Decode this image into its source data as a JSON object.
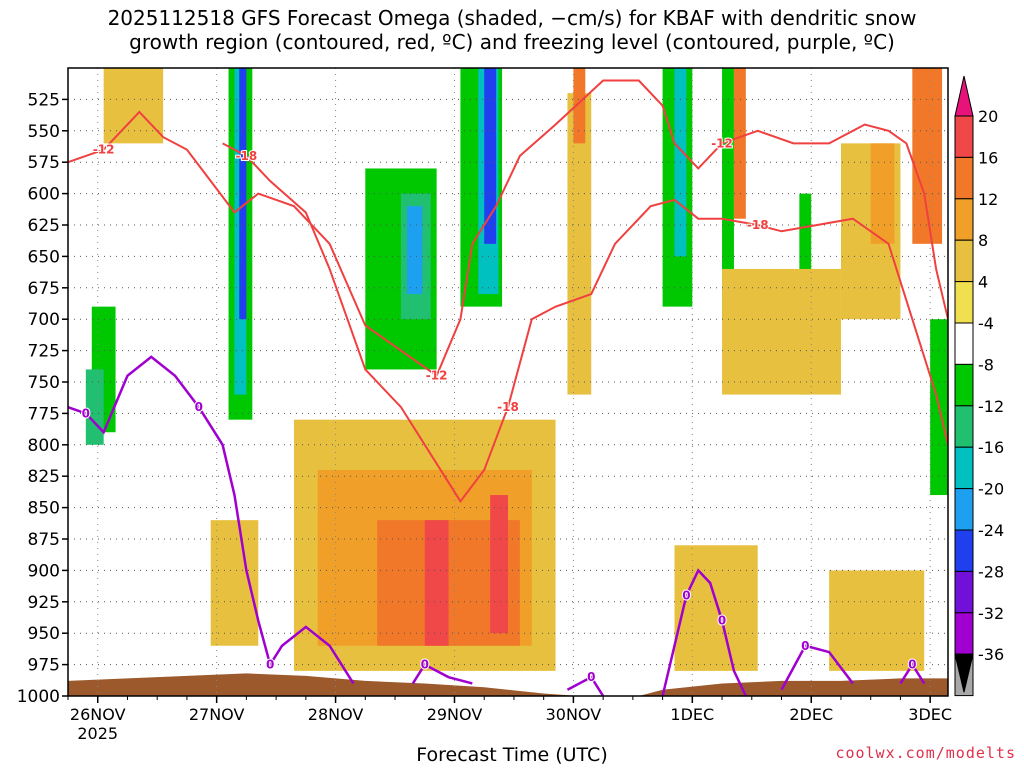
{
  "chart_data": {
    "type": "heatmap",
    "title_line1": "2025112518 GFS Forecast Omega (shaded, −cm/s) for KBAF with dendritic snow",
    "title_line2": "growth region (contoured, red, ºC) and freezing level (contoured, purple, ºC)",
    "xlabel": "Forecast Time (UTC)",
    "credit": "coolwx.com/modelts",
    "y_axis": {
      "unit": "hPa",
      "range": [
        500,
        1000
      ],
      "ticks": [
        525,
        550,
        575,
        600,
        625,
        650,
        675,
        700,
        725,
        750,
        775,
        800,
        825,
        850,
        875,
        900,
        925,
        950,
        975,
        1000
      ]
    },
    "x_axis": {
      "range_days": [
        0,
        7.4
      ],
      "ticks": [
        {
          "label": "26NOV",
          "sub": "2025",
          "day": 0.25
        },
        {
          "label": "27NOV",
          "sub": "",
          "day": 1.25
        },
        {
          "label": "28NOV",
          "sub": "",
          "day": 2.25
        },
        {
          "label": "29NOV",
          "sub": "",
          "day": 3.25
        },
        {
          "label": "30NOV",
          "sub": "",
          "day": 4.25
        },
        {
          "label": "1DEC",
          "sub": "",
          "day": 5.25
        },
        {
          "label": "2DEC",
          "sub": "",
          "day": 6.25
        },
        {
          "label": "3DEC",
          "sub": "",
          "day": 7.25
        }
      ]
    },
    "colorbar": {
      "levels": [
        20,
        16,
        12,
        8,
        4,
        -4,
        -8,
        -12,
        -16,
        -20,
        -24,
        -28,
        -32,
        -36
      ],
      "colors": [
        "#e8137a",
        "#f04848",
        "#f07828",
        "#f0a028",
        "#e8c040",
        "#f0e050",
        "#ffffff",
        "#00c800",
        "#20c070",
        "#00c0c0",
        "#1ea0f0",
        "#2040f0",
        "#7010d8",
        "#a000d0",
        "#a8a8a8",
        "#000000"
      ]
    },
    "omega_cells": [
      {
        "d": [
          0.05,
          0.35
        ],
        "p": [
          500,
          560
        ],
        "v": -8
      },
      {
        "d": [
          0.2,
          0.4
        ],
        "p": [
          690,
          790
        ],
        "v": -12
      },
      {
        "d": [
          0.15,
          0.3
        ],
        "p": [
          740,
          800
        ],
        "v": -16
      },
      {
        "d": [
          0.45,
          0.65
        ],
        "p": [
          500,
          610
        ],
        "v": -8
      },
      {
        "d": [
          0.9,
          1.3
        ],
        "p": [
          500,
          530
        ],
        "v": -8
      },
      {
        "d": [
          1.0,
          1.35
        ],
        "p": [
          690,
          800
        ],
        "v": -8
      },
      {
        "d": [
          1.3,
          1.7
        ],
        "p": [
          500,
          820
        ],
        "v": -8
      },
      {
        "d": [
          1.35,
          1.55
        ],
        "p": [
          500,
          780
        ],
        "v": -12
      },
      {
        "d": [
          1.4,
          1.5
        ],
        "p": [
          500,
          760
        ],
        "v": -20
      },
      {
        "d": [
          1.44,
          1.5
        ],
        "p": [
          500,
          700
        ],
        "v": -28
      },
      {
        "d": [
          1.7,
          2.1
        ],
        "p": [
          500,
          580
        ],
        "v": -8
      },
      {
        "d": [
          2.05,
          2.4
        ],
        "p": [
          500,
          620
        ],
        "v": -8
      },
      {
        "d": [
          2.2,
          3.2
        ],
        "p": [
          540,
          760
        ],
        "v": -8
      },
      {
        "d": [
          2.5,
          3.1
        ],
        "p": [
          580,
          740
        ],
        "v": -12
      },
      {
        "d": [
          2.8,
          3.05
        ],
        "p": [
          600,
          700
        ],
        "v": -16
      },
      {
        "d": [
          2.85,
          2.98
        ],
        "p": [
          610,
          680
        ],
        "v": -24
      },
      {
        "d": [
          3.2,
          3.7
        ],
        "p": [
          500,
          720
        ],
        "v": -8
      },
      {
        "d": [
          3.3,
          3.65
        ],
        "p": [
          500,
          690
        ],
        "v": -12
      },
      {
        "d": [
          3.45,
          3.62
        ],
        "p": [
          500,
          680
        ],
        "v": -20
      },
      {
        "d": [
          3.5,
          3.6
        ],
        "p": [
          500,
          640
        ],
        "v": -28
      },
      {
        "d": [
          3.95,
          4.05
        ],
        "p": [
          500,
          570
        ],
        "v": -8
      },
      {
        "d": [
          4.4,
          4.6
        ],
        "p": [
          500,
          740
        ],
        "v": -8
      },
      {
        "d": [
          4.9,
          5.3
        ],
        "p": [
          500,
          690
        ],
        "v": -8
      },
      {
        "d": [
          5.0,
          5.25
        ],
        "p": [
          500,
          690
        ],
        "v": -12
      },
      {
        "d": [
          5.1,
          5.2
        ],
        "p": [
          500,
          650
        ],
        "v": -20
      },
      {
        "d": [
          5.4,
          5.65
        ],
        "p": [
          500,
          740
        ],
        "v": -8
      },
      {
        "d": [
          5.5,
          5.6
        ],
        "p": [
          500,
          700
        ],
        "v": -12
      },
      {
        "d": [
          6.0,
          6.3
        ],
        "p": [
          600,
          820
        ],
        "v": -8
      },
      {
        "d": [
          6.15,
          6.25
        ],
        "p": [
          600,
          760
        ],
        "v": -12
      },
      {
        "d": [
          7.0,
          7.3
        ],
        "p": [
          560,
          820
        ],
        "v": -8
      },
      {
        "d": [
          7.25,
          7.4
        ],
        "p": [
          700,
          840
        ],
        "v": -12
      },
      {
        "d": [
          0.3,
          0.8
        ],
        "p": [
          500,
          560
        ],
        "v": 4
      },
      {
        "d": [
          1.2,
          1.6
        ],
        "p": [
          860,
          960
        ],
        "v": 4
      },
      {
        "d": [
          1.9,
          4.1
        ],
        "p": [
          780,
          980
        ],
        "v": 4
      },
      {
        "d": [
          2.1,
          3.9
        ],
        "p": [
          820,
          960
        ],
        "v": 8
      },
      {
        "d": [
          2.6,
          3.8
        ],
        "p": [
          860,
          960
        ],
        "v": 12
      },
      {
        "d": [
          3.0,
          3.2
        ],
        "p": [
          860,
          960
        ],
        "v": 16
      },
      {
        "d": [
          3.55,
          3.7
        ],
        "p": [
          840,
          950
        ],
        "v": 16
      },
      {
        "d": [
          4.2,
          4.4
        ],
        "p": [
          520,
          760
        ],
        "v": 4
      },
      {
        "d": [
          4.25,
          4.35
        ],
        "p": [
          500,
          560
        ],
        "v": 12
      },
      {
        "d": [
          5.1,
          5.8
        ],
        "p": [
          880,
          980
        ],
        "v": 4
      },
      {
        "d": [
          5.5,
          6.5
        ],
        "p": [
          660,
          760
        ],
        "v": 4
      },
      {
        "d": [
          6.5,
          7.0
        ],
        "p": [
          560,
          700
        ],
        "v": 4
      },
      {
        "d": [
          6.75,
          6.95
        ],
        "p": [
          560,
          640
        ],
        "v": 8
      },
      {
        "d": [
          6.4,
          7.2
        ],
        "p": [
          900,
          980
        ],
        "v": 4
      },
      {
        "d": [
          7.1,
          7.35
        ],
        "p": [
          500,
          640
        ],
        "v": 12
      },
      {
        "d": [
          5.6,
          5.7
        ],
        "p": [
          500,
          620
        ],
        "v": 12
      }
    ],
    "dgz_isotherms": [
      {
        "label": "-12",
        "points": [
          [
            0,
            575
          ],
          [
            0.3,
            565
          ],
          [
            0.6,
            535
          ],
          [
            0.8,
            555
          ],
          [
            1.0,
            565
          ],
          [
            1.2,
            590
          ],
          [
            1.4,
            615
          ],
          [
            1.6,
            600
          ],
          [
            1.9,
            610
          ],
          [
            2.2,
            640
          ],
          [
            2.5,
            705
          ],
          [
            2.8,
            725
          ],
          [
            3.1,
            745
          ],
          [
            3.3,
            700
          ],
          [
            3.4,
            640
          ],
          [
            3.6,
            610
          ],
          [
            3.8,
            570
          ],
          [
            4.1,
            545
          ],
          [
            4.5,
            510
          ],
          [
            4.8,
            510
          ],
          [
            5.0,
            530
          ],
          [
            5.1,
            560
          ],
          [
            5.3,
            580
          ],
          [
            5.5,
            560
          ],
          [
            5.8,
            550
          ],
          [
            6.1,
            560
          ],
          [
            6.4,
            560
          ],
          [
            6.7,
            545
          ],
          [
            6.9,
            550
          ],
          [
            7.05,
            560
          ],
          [
            7.2,
            600
          ],
          [
            7.3,
            660
          ],
          [
            7.4,
            700
          ]
        ]
      },
      {
        "label": "-18",
        "points": [
          [
            1.3,
            560
          ],
          [
            1.5,
            570
          ],
          [
            1.7,
            590
          ],
          [
            2.0,
            615
          ],
          [
            2.2,
            660
          ],
          [
            2.5,
            740
          ],
          [
            2.8,
            770
          ],
          [
            3.0,
            800
          ],
          [
            3.3,
            845
          ],
          [
            3.5,
            820
          ],
          [
            3.7,
            770
          ],
          [
            3.9,
            700
          ],
          [
            4.1,
            690
          ],
          [
            4.4,
            680
          ],
          [
            4.6,
            640
          ],
          [
            4.9,
            610
          ],
          [
            5.1,
            605
          ],
          [
            5.3,
            620
          ],
          [
            5.5,
            620
          ],
          [
            5.8,
            625
          ],
          [
            6.0,
            630
          ],
          [
            6.3,
            625
          ],
          [
            6.6,
            620
          ],
          [
            6.9,
            640
          ],
          [
            7.1,
            700
          ],
          [
            7.3,
            760
          ],
          [
            7.4,
            800
          ]
        ]
      }
    ],
    "freezing_level": [
      {
        "label": "0",
        "points": [
          [
            0,
            770
          ],
          [
            0.15,
            775
          ],
          [
            0.3,
            790
          ],
          [
            0.5,
            745
          ],
          [
            0.7,
            730
          ],
          [
            0.9,
            745
          ],
          [
            1.1,
            770
          ],
          [
            1.3,
            800
          ],
          [
            1.4,
            840
          ],
          [
            1.5,
            900
          ],
          [
            1.6,
            940
          ],
          [
            1.7,
            975
          ],
          [
            1.8,
            960
          ],
          [
            2.0,
            945
          ],
          [
            2.2,
            960
          ],
          [
            2.4,
            990
          ]
        ]
      },
      {
        "label": "0",
        "points": [
          [
            2.9,
            990
          ],
          [
            3.0,
            975
          ],
          [
            3.2,
            985
          ],
          [
            3.4,
            990
          ]
        ]
      },
      {
        "label": "0",
        "points": [
          [
            4.2,
            995
          ],
          [
            4.4,
            985
          ],
          [
            4.5,
            1000
          ]
        ]
      },
      {
        "label": "0",
        "points": [
          [
            5.0,
            1000
          ],
          [
            5.2,
            920
          ],
          [
            5.3,
            900
          ],
          [
            5.4,
            910
          ],
          [
            5.5,
            940
          ],
          [
            5.6,
            980
          ],
          [
            5.7,
            1000
          ]
        ]
      },
      {
        "label": "0",
        "points": [
          [
            6.0,
            995
          ],
          [
            6.2,
            960
          ],
          [
            6.4,
            965
          ],
          [
            6.6,
            990
          ]
        ]
      },
      {
        "label": "0",
        "points": [
          [
            7.0,
            990
          ],
          [
            7.1,
            975
          ],
          [
            7.2,
            990
          ]
        ]
      }
    ],
    "terrain": [
      [
        0,
        988
      ],
      [
        0.5,
        986
      ],
      [
        1.0,
        984
      ],
      [
        1.5,
        982
      ],
      [
        2.0,
        984
      ],
      [
        2.5,
        988
      ],
      [
        3.0,
        990
      ],
      [
        3.5,
        993
      ],
      [
        4.0,
        998
      ],
      [
        4.3,
        1000
      ],
      [
        4.8,
        1000
      ],
      [
        5.0,
        995
      ],
      [
        5.5,
        990
      ],
      [
        6.0,
        988
      ],
      [
        6.5,
        988
      ],
      [
        7.0,
        986
      ],
      [
        7.4,
        986
      ]
    ]
  }
}
